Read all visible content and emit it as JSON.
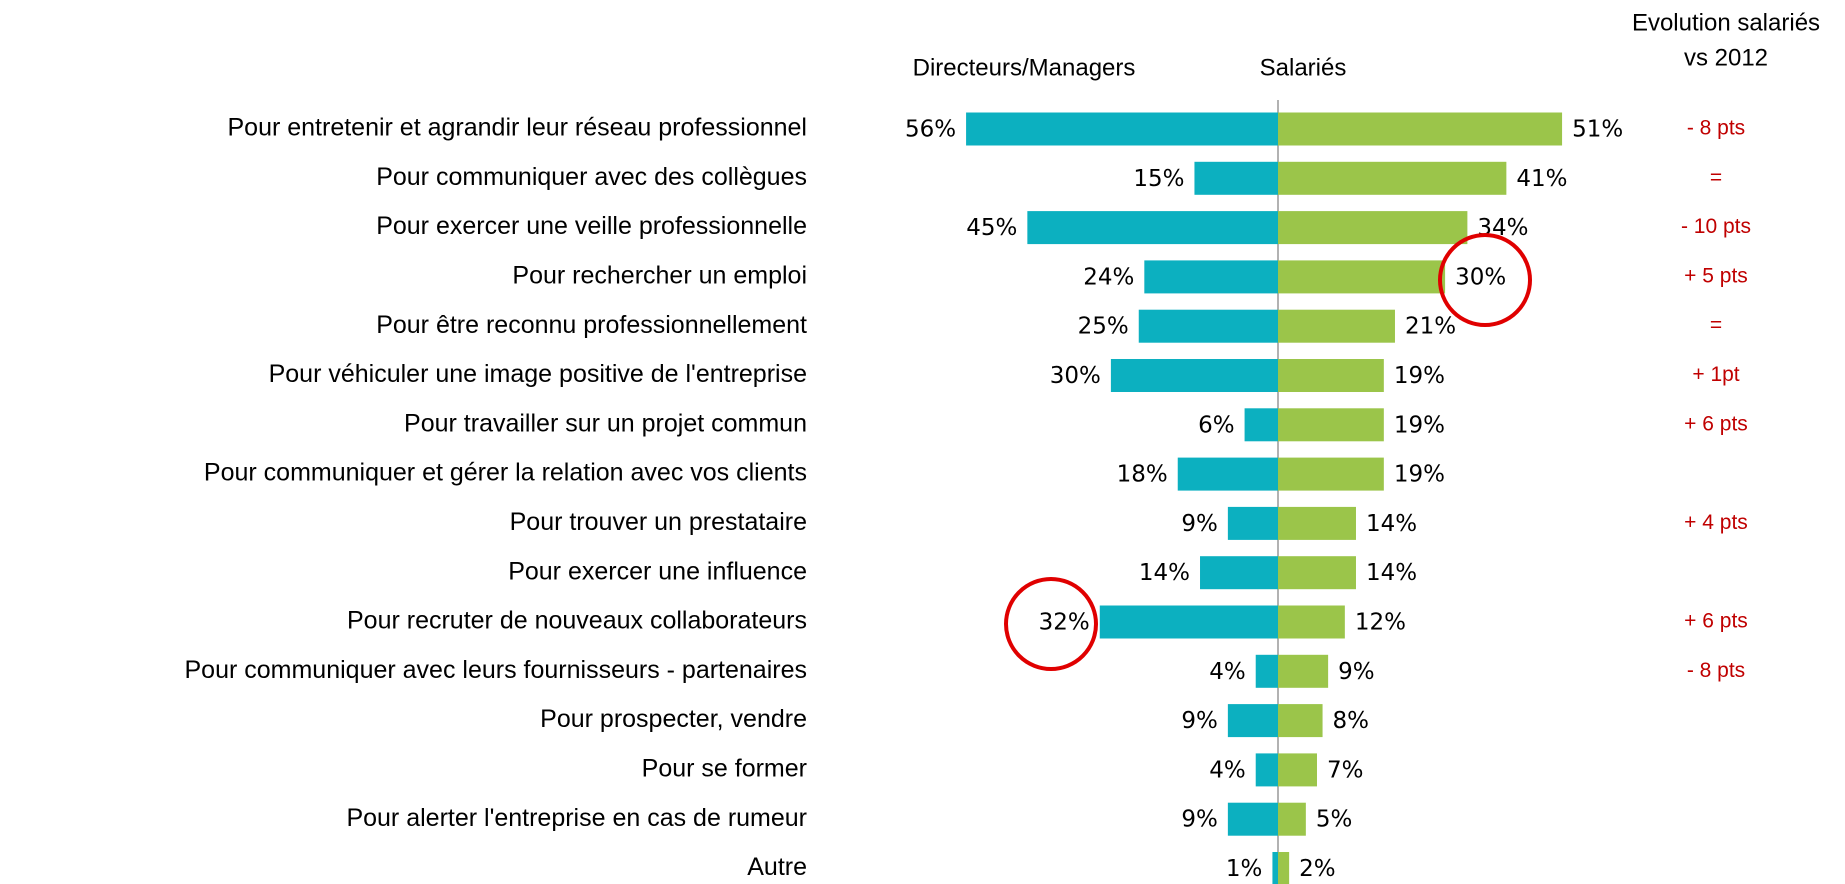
{
  "chart_data": {
    "type": "bar",
    "categories": [
      "Pour entretenir et agrandir leur réseau professionnel",
      "Pour communiquer avec des collègues",
      "Pour exercer une veille professionnelle",
      "Pour rechercher un emploi",
      "Pour être reconnu professionnellement",
      "Pour véhiculer une image positive de l'entreprise",
      "Pour travailler sur un projet commun",
      "Pour communiquer et gérer la relation avec vos clients",
      "Pour trouver un prestataire",
      "Pour exercer une influence",
      "Pour recruter de nouveaux collaborateurs",
      "Pour communiquer avec leurs fournisseurs - partenaires",
      "Pour prospecter, vendre ",
      "Pour se former",
      "Pour alerter l'entreprise en cas de rumeur",
      "Autre"
    ],
    "series": [
      {
        "name": "Directeurs/Managers",
        "color": "#0cb0c0",
        "values": [
          56,
          15,
          45,
          24,
          25,
          30,
          6,
          18,
          9,
          14,
          32,
          4,
          9,
          4,
          9,
          1
        ],
        "value_labels": [
          "56%",
          "15%",
          "45%",
          "24%",
          "25%",
          "30%",
          "6%",
          "18%",
          "9%",
          "14%",
          "32%",
          "4%",
          "9%",
          "4%",
          "9%",
          "1%"
        ]
      },
      {
        "name": "Salariés",
        "color": "#9bc54a",
        "values": [
          51,
          41,
          34,
          30,
          21,
          19,
          19,
          19,
          14,
          14,
          12,
          9,
          8,
          7,
          5,
          2
        ],
        "value_labels": [
          "51%",
          "41%",
          "34%",
          "30%",
          "21%",
          "19%",
          "19%",
          "19%",
          "14%",
          "14%",
          "12%",
          "9%",
          "8%",
          "7%",
          "5%",
          "2%"
        ]
      }
    ],
    "evolution_title": [
      "Evolution salariés",
      "vs 2012"
    ],
    "evolution": [
      "- 8 pts",
      "=",
      "- 10 pts",
      "+ 5 pts",
      "=",
      "+ 1pt",
      "+ 6 pts",
      null,
      "+ 4 pts",
      null,
      "+ 6 pts",
      "- 8 pts",
      null,
      null,
      null,
      null
    ]
  }
}
